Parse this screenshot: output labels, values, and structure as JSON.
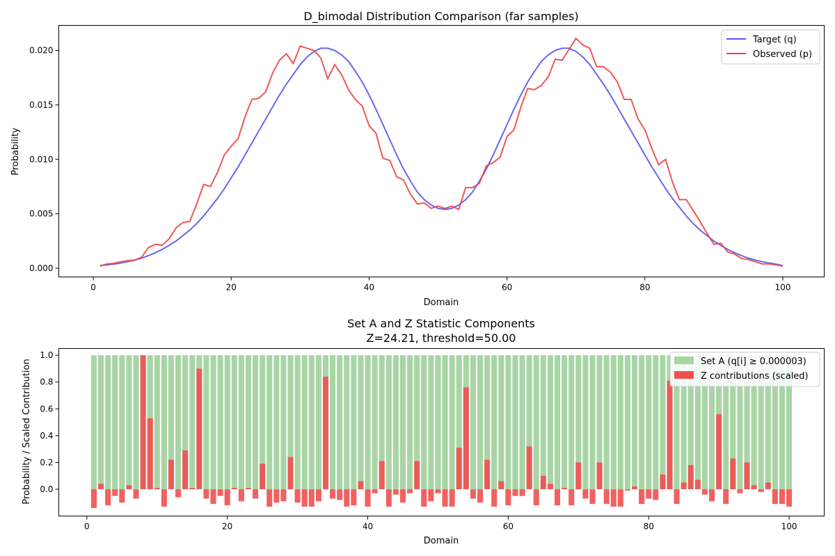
{
  "chart_data": [
    {
      "type": "line",
      "title": "D_bimodal Distribution Comparison (far samples)",
      "xlabel": "Domain",
      "ylabel": "Probability",
      "xlim": [
        -5,
        106
      ],
      "ylim": [
        -0.0008,
        0.0223
      ],
      "xticks": [
        0,
        20,
        40,
        60,
        80,
        100
      ],
      "xtick_labels": [
        "0",
        "20",
        "40",
        "60",
        "80",
        "100"
      ],
      "yticks": [
        0,
        0.005,
        0.01,
        0.015,
        0.02
      ],
      "ytick_labels": [
        "0.000",
        "0.005",
        "0.010",
        "0.015",
        "0.020"
      ],
      "grid": false,
      "legend_position": "top-right",
      "x_start": 1,
      "x_end": 100,
      "series": [
        {
          "name": "Target (q)",
          "color": "#5555ee",
          "values": [
            0.00025,
            0.00031,
            0.00038,
            0.00048,
            0.0006,
            0.00075,
            0.00093,
            0.00116,
            0.00142,
            0.00173,
            0.0021,
            0.0025,
            0.003,
            0.0035,
            0.0041,
            0.0048,
            0.0056,
            0.0064,
            0.0073,
            0.0083,
            0.0093,
            0.0104,
            0.0115,
            0.0126,
            0.0137,
            0.0148,
            0.0159,
            0.0169,
            0.0178,
            0.0187,
            0.0194,
            0.0199,
            0.0202,
            0.0202,
            0.02,
            0.0196,
            0.019,
            0.0181,
            0.0171,
            0.0159,
            0.0146,
            0.0132,
            0.0118,
            0.0104,
            0.0091,
            0.008,
            0.007,
            0.0063,
            0.0058,
            0.0055,
            0.0054,
            0.0055,
            0.0058,
            0.0063,
            0.007,
            0.008,
            0.0091,
            0.0104,
            0.0118,
            0.0132,
            0.0146,
            0.0159,
            0.0171,
            0.0181,
            0.019,
            0.0196,
            0.02,
            0.0202,
            0.0202,
            0.0199,
            0.0194,
            0.0187,
            0.0178,
            0.0169,
            0.0159,
            0.0148,
            0.0137,
            0.0126,
            0.0115,
            0.0104,
            0.0093,
            0.0083,
            0.0073,
            0.0064,
            0.0056,
            0.0048,
            0.0041,
            0.0035,
            0.003,
            0.0025,
            0.0021,
            0.00173,
            0.00142,
            0.00116,
            0.00093,
            0.00075,
            0.0006,
            0.00048,
            0.00038,
            0.00025
          ]
        },
        {
          "name": "Observed (p)",
          "color": "#ee4444",
          "values": [
            0.0002,
            0.0004,
            0.00045,
            0.0006,
            0.0007,
            0.00075,
            0.001,
            0.0019,
            0.0022,
            0.0021,
            0.0027,
            0.0037,
            0.0042,
            0.0043,
            0.0059,
            0.0077,
            0.0075,
            0.0088,
            0.0104,
            0.0112,
            0.0119,
            0.0139,
            0.0155,
            0.0156,
            0.0162,
            0.0179,
            0.0191,
            0.0197,
            0.0188,
            0.0204,
            0.0202,
            0.02,
            0.0193,
            0.0174,
            0.0187,
            0.0178,
            0.0164,
            0.0155,
            0.0149,
            0.0131,
            0.0124,
            0.0101,
            0.0099,
            0.0084,
            0.0081,
            0.0068,
            0.0059,
            0.006,
            0.0055,
            0.0057,
            0.0055,
            0.0057,
            0.0054,
            0.0074,
            0.0074,
            0.0078,
            0.0094,
            0.0097,
            0.0102,
            0.0121,
            0.0127,
            0.0148,
            0.0165,
            0.0164,
            0.0168,
            0.0176,
            0.0192,
            0.0191,
            0.0201,
            0.0211,
            0.0205,
            0.0202,
            0.0185,
            0.0185,
            0.018,
            0.0171,
            0.0155,
            0.0155,
            0.0137,
            0.0127,
            0.011,
            0.0095,
            0.01,
            0.0079,
            0.0063,
            0.0063,
            0.0053,
            0.0043,
            0.0032,
            0.0022,
            0.0023,
            0.0015,
            0.0013,
            0.0009,
            0.0008,
            0.0006,
            0.0004,
            0.0004,
            0.0003,
            0.0002
          ]
        }
      ]
    },
    {
      "type": "bar",
      "title": "Set A and Z Statistic Components",
      "subtitle": "Z=24.21, threshold=50.00",
      "xlabel": "Domain",
      "ylabel": "Probability / Scaled Contribution",
      "xlim": [
        -4,
        105
      ],
      "ylim": [
        -0.2,
        1.05
      ],
      "xticks": [
        0,
        20,
        40,
        60,
        80,
        100
      ],
      "xtick_labels": [
        "0",
        "20",
        "40",
        "60",
        "80",
        "100"
      ],
      "yticks": [
        0,
        0.2,
        0.4,
        0.6,
        0.8,
        1.0
      ],
      "ytick_labels": [
        "0.0",
        "0.2",
        "0.4",
        "0.6",
        "0.8",
        "1.0"
      ],
      "grid": false,
      "legend_position": "top-right",
      "x_start": 1,
      "series": [
        {
          "name": "Set A (q[i] ≥ 0.000003)",
          "color": "#a8d5a5",
          "values": [
            1,
            1,
            1,
            1,
            1,
            1,
            1,
            1,
            1,
            1,
            1,
            1,
            1,
            1,
            1,
            1,
            1,
            1,
            1,
            1,
            1,
            1,
            1,
            1,
            1,
            1,
            1,
            1,
            1,
            1,
            1,
            1,
            1,
            1,
            1,
            1,
            1,
            1,
            1,
            1,
            1,
            1,
            1,
            1,
            1,
            1,
            1,
            1,
            1,
            1,
            1,
            1,
            1,
            1,
            1,
            1,
            1,
            1,
            1,
            1,
            1,
            1,
            1,
            1,
            1,
            1,
            1,
            1,
            1,
            1,
            1,
            1,
            1,
            1,
            1,
            1,
            1,
            1,
            1,
            1,
            1,
            1,
            1,
            1,
            1,
            1,
            1,
            1,
            1,
            1,
            1,
            1,
            1,
            1,
            1,
            1,
            1,
            1,
            1,
            1
          ]
        },
        {
          "name": "Z contributions (scaled)",
          "color": "#f05050",
          "values": [
            -0.14,
            0.04,
            -0.12,
            -0.05,
            -0.1,
            0.03,
            -0.07,
            1.0,
            0.53,
            0.01,
            -0.13,
            0.22,
            -0.06,
            0.29,
            0.01,
            0.9,
            -0.07,
            -0.11,
            -0.05,
            -0.12,
            0.01,
            -0.09,
            0.01,
            -0.07,
            0.19,
            -0.13,
            -0.1,
            -0.09,
            0.24,
            -0.1,
            -0.13,
            -0.13,
            -0.09,
            0.84,
            -0.07,
            -0.08,
            -0.13,
            -0.12,
            0.06,
            -0.13,
            -0.03,
            0.21,
            -0.13,
            -0.04,
            -0.1,
            -0.03,
            0.21,
            -0.13,
            -0.09,
            -0.03,
            -0.13,
            -0.13,
            0.31,
            0.76,
            -0.07,
            -0.1,
            0.22,
            -0.13,
            0.06,
            -0.12,
            -0.05,
            -0.05,
            0.32,
            -0.12,
            0.1,
            0.04,
            -0.12,
            0.01,
            -0.12,
            0.2,
            -0.07,
            -0.11,
            0.2,
            -0.11,
            -0.13,
            -0.13,
            -0.01,
            0.02,
            -0.11,
            -0.07,
            -0.08,
            0.11,
            0.81,
            -0.11,
            0.05,
            0.18,
            0.07,
            -0.04,
            -0.09,
            0.56,
            -0.11,
            0.23,
            -0.03,
            0.2,
            0.03,
            -0.02,
            0.05,
            -0.11,
            -0.11,
            -0.13
          ]
        }
      ]
    }
  ]
}
